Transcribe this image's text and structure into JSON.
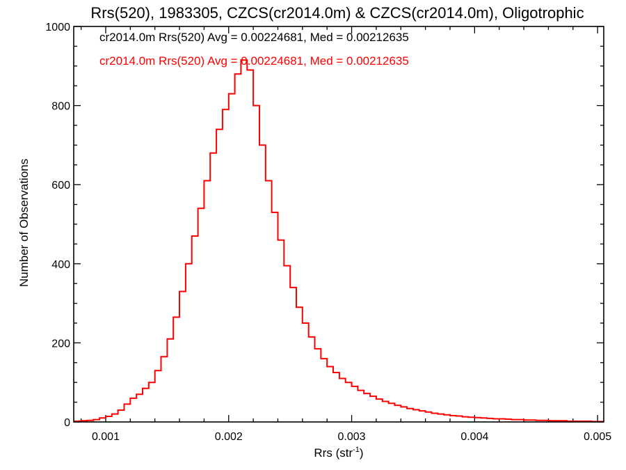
{
  "chart_data": {
    "type": "line",
    "title": "Rrs(520), 1983305, CZCS(cr2014.0m) & CZCS(cr2014.0m), Oligotrophic",
    "xlabel": "Rrs (str",
    "xlabel_sup": "-1",
    "xlabel_suffix": ")",
    "ylabel": "Number of Observations",
    "xlim": [
      0.00074,
      0.00505
    ],
    "ylim": [
      0,
      1000
    ],
    "x_ticks": [
      {
        "value": 0.001,
        "label": "0.001"
      },
      {
        "value": 0.002,
        "label": "0.002"
      },
      {
        "value": 0.003,
        "label": "0.003"
      },
      {
        "value": 0.004,
        "label": "0.004"
      },
      {
        "value": 0.005,
        "label": "0.005"
      }
    ],
    "y_ticks": [
      {
        "value": 0,
        "label": "0"
      },
      {
        "value": 200,
        "label": "200"
      },
      {
        "value": 400,
        "label": "400"
      },
      {
        "value": 600,
        "label": "600"
      },
      {
        "value": 800,
        "label": "800"
      },
      {
        "value": 1000,
        "label": "1000"
      }
    ],
    "grid": false,
    "annotations": [
      {
        "text": "cr2014.0m Rrs(520) Avg = 0.00224681, Med = 0.00212635",
        "color": "#000000"
      },
      {
        "text": "cr2014.0m Rrs(520) Avg = 0.00224681, Med = 0.00212635",
        "color": "#ff0000"
      }
    ],
    "series": [
      {
        "color": "#ff0000",
        "step": true,
        "points": [
          [
            0.00074,
            2
          ],
          [
            0.0008,
            3
          ],
          [
            0.00085,
            4
          ],
          [
            0.0009,
            6
          ],
          [
            0.00095,
            10
          ],
          [
            0.001,
            14
          ],
          [
            0.00105,
            20
          ],
          [
            0.0011,
            30
          ],
          [
            0.00115,
            45
          ],
          [
            0.0012,
            60
          ],
          [
            0.00125,
            70
          ],
          [
            0.0013,
            85
          ],
          [
            0.00135,
            100
          ],
          [
            0.0014,
            130
          ],
          [
            0.00145,
            165
          ],
          [
            0.0015,
            210
          ],
          [
            0.00155,
            265
          ],
          [
            0.0016,
            330
          ],
          [
            0.00165,
            400
          ],
          [
            0.0017,
            470
          ],
          [
            0.00175,
            540
          ],
          [
            0.0018,
            610
          ],
          [
            0.00185,
            680
          ],
          [
            0.0019,
            740
          ],
          [
            0.00195,
            790
          ],
          [
            0.002,
            830
          ],
          [
            0.00205,
            880
          ],
          [
            0.0021,
            915
          ],
          [
            0.00215,
            890
          ],
          [
            0.0022,
            800
          ],
          [
            0.00225,
            700
          ],
          [
            0.0023,
            610
          ],
          [
            0.00235,
            530
          ],
          [
            0.0024,
            460
          ],
          [
            0.00245,
            395
          ],
          [
            0.0025,
            340
          ],
          [
            0.00255,
            290
          ],
          [
            0.0026,
            250
          ],
          [
            0.00265,
            215
          ],
          [
            0.0027,
            185
          ],
          [
            0.00275,
            160
          ],
          [
            0.0028,
            140
          ],
          [
            0.00285,
            125
          ],
          [
            0.0029,
            110
          ],
          [
            0.00295,
            100
          ],
          [
            0.003,
            90
          ],
          [
            0.00305,
            80
          ],
          [
            0.0031,
            72
          ],
          [
            0.00315,
            65
          ],
          [
            0.0032,
            58
          ],
          [
            0.00325,
            52
          ],
          [
            0.0033,
            47
          ],
          [
            0.00335,
            42
          ],
          [
            0.0034,
            38
          ],
          [
            0.00345,
            34
          ],
          [
            0.0035,
            31
          ],
          [
            0.00355,
            28
          ],
          [
            0.0036,
            25
          ],
          [
            0.00365,
            22
          ],
          [
            0.0037,
            20
          ],
          [
            0.00375,
            18
          ],
          [
            0.0038,
            16
          ],
          [
            0.00385,
            15
          ],
          [
            0.0039,
            13
          ],
          [
            0.00395,
            12
          ],
          [
            0.004,
            11
          ],
          [
            0.00405,
            10
          ],
          [
            0.0041,
            9
          ],
          [
            0.00415,
            8
          ],
          [
            0.0042,
            8
          ],
          [
            0.00425,
            7
          ],
          [
            0.0043,
            6
          ],
          [
            0.00435,
            6
          ],
          [
            0.0044,
            5
          ],
          [
            0.00445,
            5
          ],
          [
            0.0045,
            4
          ],
          [
            0.00455,
            4
          ],
          [
            0.0046,
            3
          ],
          [
            0.00465,
            3
          ],
          [
            0.0047,
            3
          ],
          [
            0.00475,
            2
          ],
          [
            0.0048,
            2
          ],
          [
            0.00485,
            2
          ],
          [
            0.0049,
            2
          ],
          [
            0.00495,
            1
          ],
          [
            0.005,
            1
          ],
          [
            0.00505,
            1
          ]
        ]
      }
    ]
  }
}
